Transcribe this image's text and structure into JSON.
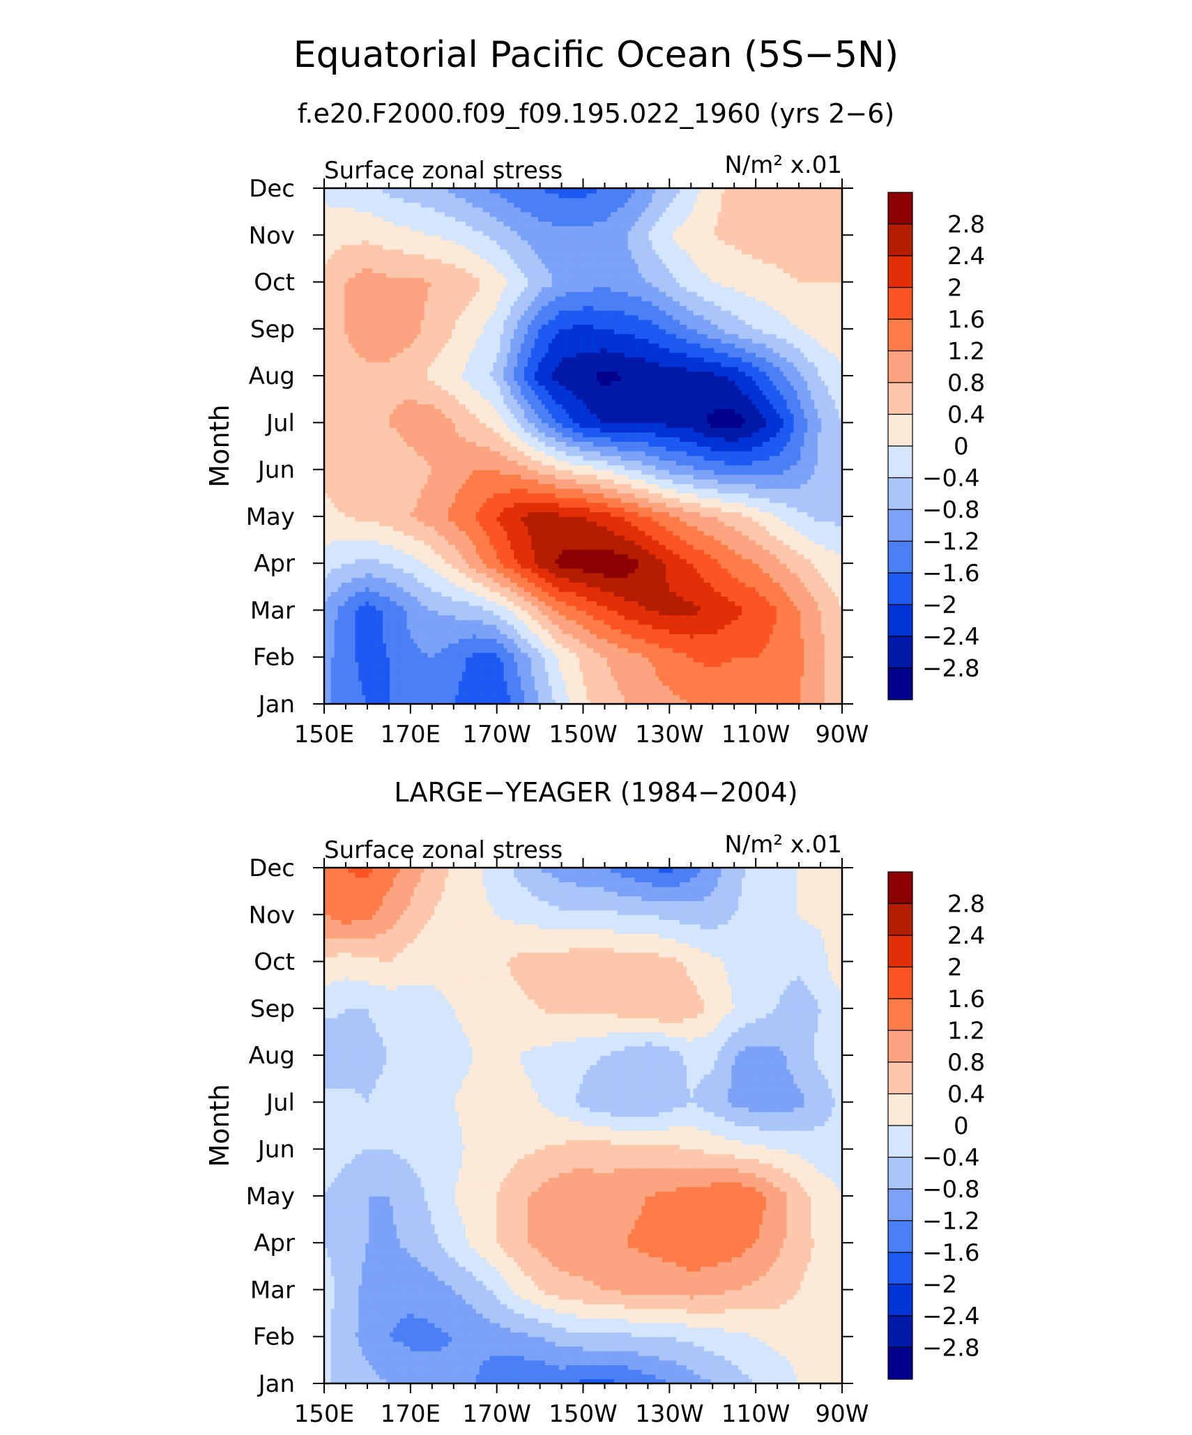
{
  "figure": {
    "title": "Equatorial Pacific Ocean (5S−5N)"
  },
  "colors": {
    "levels": [
      -2.8,
      -2.4,
      -2.0,
      -1.6,
      -1.2,
      -0.8,
      -0.4,
      0,
      0.4,
      0.8,
      1.2,
      1.6,
      2.0,
      2.4,
      2.8
    ],
    "fills": [
      "#00008c",
      "#0019a8",
      "#0033d6",
      "#1c5af2",
      "#4a7ff5",
      "#7ba2f7",
      "#a9c5fa",
      "#d4e6fd",
      "#fde9d8",
      "#fcc7aa",
      "#fca47f",
      "#fd7c48",
      "#fa5522",
      "#e22f06",
      "#b51d00",
      "#8b0000"
    ]
  },
  "colorbar_labels": [
    "2.8",
    "2.4",
    "2",
    "1.6",
    "1.2",
    "0.8",
    "0.4",
    "0",
    "−0.4",
    "−0.8",
    "−1.2",
    "−1.6",
    "−2",
    "−2.4",
    "−2.8"
  ],
  "chart_data": [
    {
      "type": "heatmap",
      "title": "f.e20.F2000.f09_f09.195.022_1960 (yrs 2−6)",
      "left_string": "Surface zonal stress",
      "right_string": "N/m² x.01",
      "xlabel": "",
      "ylabel": "Month",
      "x_ticks": [
        "150E",
        "170E",
        "170W",
        "150W",
        "130W",
        "110W",
        "90W"
      ],
      "x_lon": [
        150,
        170,
        190,
        210,
        230,
        250,
        270
      ],
      "xlim": [
        150,
        270
      ],
      "y_ticks": [
        "Jan",
        "Feb",
        "Mar",
        "Apr",
        "May",
        "Jun",
        "Jul",
        "Aug",
        "Sep",
        "Oct",
        "Nov",
        "Dec"
      ],
      "x": [
        150,
        155,
        160,
        165,
        170,
        175,
        180,
        185,
        190,
        195,
        200,
        205,
        210,
        215,
        220,
        225,
        230,
        235,
        240,
        245,
        250,
        255,
        260,
        265,
        270
      ],
      "z": [
        [
          -1.1,
          -1.5,
          -1.6,
          -1.6,
          -1.5,
          -1.4,
          -1.6,
          -1.9,
          -2.0,
          -1.4,
          -0.8,
          -0.2,
          0.3,
          0.6,
          0.8,
          1.0,
          1.1,
          1.2,
          1.3,
          1.3,
          1.4,
          1.4,
          1.2,
          0.9,
          0.5
        ],
        [
          -1.0,
          -1.5,
          -1.7,
          -1.6,
          -1.3,
          -1.2,
          -1.4,
          -1.7,
          -1.7,
          -1.1,
          -0.5,
          0.1,
          0.5,
          0.8,
          1.0,
          1.2,
          1.4,
          1.6,
          1.7,
          1.6,
          1.6,
          1.5,
          1.3,
          0.9,
          0.5
        ],
        [
          -0.9,
          -1.4,
          -1.8,
          -1.5,
          -1.1,
          -0.8,
          -0.7,
          -0.6,
          -0.3,
          0.2,
          0.8,
          1.3,
          1.6,
          1.9,
          2.2,
          2.4,
          2.5,
          2.5,
          2.3,
          2.1,
          1.9,
          1.6,
          1.2,
          0.8,
          0.4
        ],
        [
          -0.2,
          -0.4,
          -0.5,
          -0.4,
          -0.2,
          0.1,
          0.5,
          1.0,
          1.5,
          2.0,
          2.5,
          2.9,
          3.0,
          3.1,
          3.0,
          2.7,
          2.3,
          2.0,
          1.7,
          1.4,
          1.2,
          0.9,
          0.6,
          0.3,
          0.1
        ],
        [
          0.3,
          0.4,
          0.5,
          0.6,
          0.8,
          1.0,
          1.3,
          1.6,
          2.0,
          2.4,
          2.6,
          2.5,
          2.4,
          2.2,
          1.9,
          1.6,
          1.3,
          1.0,
          0.8,
          0.6,
          0.3,
          0.0,
          -0.3,
          -0.5,
          -0.5
        ],
        [
          0.5,
          0.6,
          0.6,
          0.4,
          0.6,
          0.8,
          1.0,
          1.2,
          1.2,
          1.0,
          0.7,
          0.4,
          0.2,
          0.0,
          -0.3,
          -0.6,
          -0.9,
          -1.1,
          -1.3,
          -1.4,
          -1.4,
          -1.3,
          -1.1,
          -0.7,
          -0.4
        ],
        [
          0.6,
          0.7,
          0.7,
          0.8,
          1.0,
          1.1,
          0.8,
          0.5,
          0.2,
          -0.4,
          -1.1,
          -1.7,
          -2.2,
          -2.4,
          -2.5,
          -2.4,
          -2.5,
          -2.6,
          -2.9,
          -3.0,
          -2.7,
          -2.2,
          -1.5,
          -0.8,
          -0.4
        ],
        [
          0.6,
          0.7,
          0.7,
          0.7,
          0.6,
          0.3,
          0.1,
          -0.2,
          -0.5,
          -1.4,
          -2.2,
          -2.6,
          -2.7,
          -2.9,
          -2.8,
          -2.7,
          -2.6,
          -2.6,
          -2.5,
          -2.3,
          -1.9,
          -1.4,
          -0.9,
          -0.4,
          -0.1
        ],
        [
          0.6,
          0.8,
          1.0,
          1.0,
          0.9,
          0.7,
          0.4,
          0.1,
          -0.2,
          -0.9,
          -1.6,
          -2.0,
          -2.1,
          -2.0,
          -1.9,
          -1.8,
          -1.5,
          -1.2,
          -0.9,
          -0.6,
          -0.4,
          -0.2,
          0.0,
          0.2,
          0.3
        ],
        [
          0.5,
          0.8,
          1.0,
          0.9,
          0.9,
          0.8,
          0.7,
          0.5,
          0.2,
          -0.2,
          -0.6,
          -0.9,
          -1.0,
          -1.1,
          -1.0,
          -0.8,
          -0.5,
          -0.2,
          0.0,
          0.1,
          0.2,
          0.3,
          0.4,
          0.4,
          0.4
        ],
        [
          0.2,
          0.3,
          0.3,
          0.2,
          0.1,
          0.0,
          -0.1,
          -0.3,
          -0.5,
          -0.8,
          -1.0,
          -1.1,
          -1.1,
          -1.0,
          -0.8,
          -0.4,
          0.0,
          0.2,
          0.4,
          0.5,
          0.6,
          0.6,
          0.6,
          0.5,
          0.4
        ],
        [
          -0.1,
          -0.2,
          -0.3,
          -0.5,
          -0.6,
          -0.7,
          -0.9,
          -1.1,
          -1.3,
          -1.5,
          -1.6,
          -1.7,
          -1.7,
          -1.6,
          -1.4,
          -1.0,
          -0.6,
          -0.2,
          0.3,
          0.5,
          0.6,
          0.6,
          0.6,
          0.5,
          0.4
        ]
      ]
    },
    {
      "type": "heatmap",
      "title": "LARGE−YEAGER (1984−2004)",
      "left_string": "Surface zonal stress",
      "right_string": "N/m² x.01",
      "xlabel": "",
      "ylabel": "Month",
      "x_ticks": [
        "150E",
        "170E",
        "170W",
        "150W",
        "130W",
        "110W",
        "90W"
      ],
      "x_lon": [
        150,
        170,
        190,
        210,
        230,
        250,
        270
      ],
      "xlim": [
        150,
        270
      ],
      "y_ticks": [
        "Jan",
        "Feb",
        "Mar",
        "Apr",
        "May",
        "Jun",
        "Jul",
        "Aug",
        "Sep",
        "Oct",
        "Nov",
        "Dec"
      ],
      "x": [
        150,
        155,
        160,
        165,
        170,
        175,
        180,
        185,
        190,
        195,
        200,
        205,
        210,
        215,
        220,
        225,
        230,
        235,
        240,
        245,
        250,
        255,
        260,
        265,
        270
      ],
      "z": [
        [
          -0.3,
          -0.6,
          -0.7,
          -0.8,
          -0.9,
          -1.0,
          -1.1,
          -1.2,
          -1.5,
          -1.6,
          -1.6,
          -1.5,
          -1.7,
          -1.7,
          -1.6,
          -1.4,
          -1.2,
          -1.0,
          -0.8,
          -0.6,
          -0.4,
          -0.2,
          0.0,
          0.1,
          0.2
        ],
        [
          -0.3,
          -0.7,
          -0.9,
          -1.2,
          -1.3,
          -1.3,
          -1.2,
          -1.1,
          -1.0,
          -0.9,
          -0.8,
          -0.6,
          -0.5,
          -0.5,
          -0.5,
          -0.4,
          -0.4,
          -0.3,
          -0.2,
          -0.1,
          0.0,
          0.1,
          0.1,
          0.2,
          0.2
        ],
        [
          -0.2,
          -0.6,
          -0.9,
          -1.1,
          -1.1,
          -1.0,
          -0.8,
          -0.6,
          -0.3,
          0.1,
          0.4,
          0.6,
          0.7,
          0.8,
          0.9,
          0.9,
          0.9,
          1.0,
          0.9,
          0.8,
          0.7,
          0.6,
          0.4,
          0.2,
          0.1
        ],
        [
          -0.4,
          -0.6,
          -0.8,
          -0.9,
          -0.7,
          -0.5,
          -0.2,
          0.1,
          0.4,
          0.7,
          0.9,
          1.1,
          1.1,
          1.1,
          1.2,
          1.3,
          1.4,
          1.5,
          1.5,
          1.4,
          1.2,
          0.9,
          0.6,
          0.3,
          0.1
        ],
        [
          -0.4,
          -0.6,
          -0.8,
          -0.8,
          -0.6,
          -0.3,
          0.0,
          0.2,
          0.4,
          0.7,
          0.9,
          1.1,
          1.1,
          1.0,
          1.1,
          1.2,
          1.3,
          1.4,
          1.5,
          1.6,
          1.4,
          1.0,
          0.6,
          0.2,
          0.0
        ],
        [
          -0.2,
          -0.3,
          -0.4,
          -0.4,
          -0.3,
          -0.2,
          -0.1,
          0.1,
          0.2,
          0.3,
          0.4,
          0.5,
          0.6,
          0.6,
          0.6,
          0.5,
          0.5,
          0.4,
          0.3,
          0.2,
          0.1,
          0.0,
          -0.1,
          -0.2,
          -0.2
        ],
        [
          -0.3,
          -0.3,
          -0.4,
          -0.3,
          -0.2,
          -0.1,
          0.0,
          0.1,
          0.1,
          0.1,
          0.0,
          -0.2,
          -0.5,
          -0.7,
          -0.8,
          -0.8,
          -0.6,
          -0.4,
          -0.6,
          -0.9,
          -1.0,
          -1.0,
          -0.9,
          -0.6,
          -0.3
        ],
        [
          -0.7,
          -0.6,
          -0.5,
          -0.4,
          -0.3,
          -0.2,
          -0.1,
          0.0,
          0.1,
          0.0,
          -0.1,
          -0.2,
          -0.3,
          -0.4,
          -0.6,
          -0.8,
          -0.6,
          -0.3,
          -0.3,
          -0.8,
          -1.0,
          -0.9,
          -0.6,
          -0.3,
          -0.2
        ],
        [
          -0.3,
          -0.4,
          -0.4,
          -0.3,
          -0.2,
          -0.1,
          0.0,
          0.1,
          0.2,
          0.3,
          0.4,
          0.5,
          0.5,
          0.5,
          0.6,
          0.7,
          0.8,
          0.6,
          0.3,
          0.0,
          -0.2,
          -0.4,
          -0.6,
          -0.4,
          -0.2
        ],
        [
          0.3,
          0.2,
          0.3,
          0.4,
          0.2,
          0.1,
          0.1,
          0.2,
          0.3,
          0.5,
          0.6,
          0.6,
          0.7,
          0.7,
          0.6,
          0.6,
          0.5,
          0.3,
          0.1,
          -0.1,
          -0.2,
          -0.3,
          -0.3,
          -0.2,
          0.4
        ],
        [
          1.2,
          1.4,
          1.3,
          1.0,
          0.7,
          0.4,
          0.2,
          0.1,
          0.0,
          -0.1,
          -0.2,
          -0.3,
          -0.3,
          -0.3,
          -0.4,
          -0.4,
          -0.5,
          -0.6,
          -0.6,
          -0.4,
          -0.2,
          -0.1,
          0.0,
          0.1,
          0.2
        ],
        [
          1.3,
          1.6,
          1.7,
          1.4,
          1.0,
          0.7,
          0.3,
          0.1,
          -0.2,
          -0.5,
          -0.8,
          -1.0,
          -1.1,
          -1.2,
          -1.4,
          -1.6,
          -1.7,
          -1.4,
          -1.0,
          -0.6,
          -0.2,
          -0.1,
          0.0,
          0.2,
          0.3
        ]
      ]
    }
  ]
}
